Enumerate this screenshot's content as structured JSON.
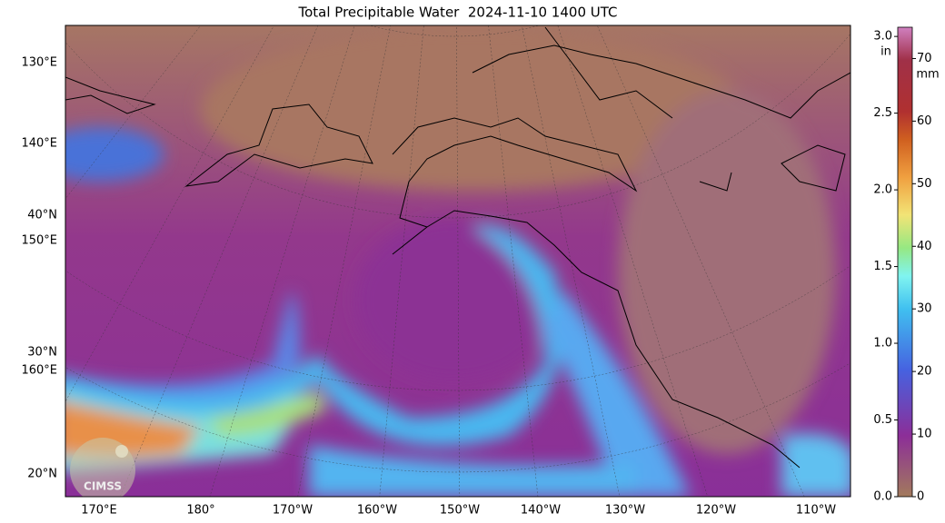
{
  "title": "Total Precipitable Water  2024-11-10 1400 UTC",
  "map": {
    "left_labels": [
      "130°E",
      "140°E",
      "40°N",
      "150°E",
      "30°N",
      "160°E",
      "20°N"
    ],
    "bottom_labels": [
      "170°E",
      "180°",
      "170°W",
      "160°W",
      "150°W",
      "140°W",
      "130°W",
      "120°W",
      "110°W"
    ],
    "logo": "CIMSS"
  },
  "colorbar": {
    "unit_in": "in",
    "unit_mm": "mm",
    "lim_in": [
      0,
      3.06
    ],
    "lim_mm": [
      0,
      75
    ],
    "ticks_in": [
      {
        "value": 0,
        "label": "0.0"
      },
      {
        "value": 0.5,
        "label": "0.5"
      },
      {
        "value": 1,
        "label": "1.0"
      },
      {
        "value": 1.5,
        "label": "1.5"
      },
      {
        "value": 2,
        "label": "2.0"
      },
      {
        "value": 2.5,
        "label": "2.5"
      },
      {
        "value": 3,
        "label": "3.0"
      }
    ],
    "ticks_mm": [
      0,
      10,
      20,
      30,
      40,
      50,
      60,
      70
    ]
  }
}
